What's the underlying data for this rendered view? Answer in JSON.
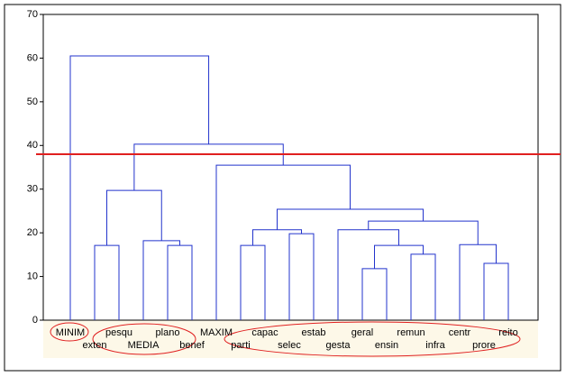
{
  "chart_data": {
    "type": "dendrogram",
    "leaves": [
      "MINIM",
      "exten",
      "pesqu",
      "MEDIA",
      "plano",
      "benef",
      "MAXIM",
      "parti",
      "capac",
      "selec",
      "estab",
      "gesta",
      "geral",
      "ensin",
      "remun",
      "infra",
      "centr",
      "prore",
      "reito"
    ],
    "merges": [
      [
        12,
        13,
        11.8
      ],
      [
        17,
        18,
        13.0
      ],
      [
        14,
        15,
        15.1
      ],
      [
        1,
        2,
        17.1
      ],
      [
        4,
        5,
        17.1
      ],
      [
        7,
        8,
        17.1
      ],
      [
        19,
        21,
        17.1
      ],
      [
        16,
        20,
        17.3
      ],
      [
        3,
        23,
        18.2
      ],
      [
        9,
        10,
        19.8
      ],
      [
        24,
        28,
        20.7
      ],
      [
        11,
        25,
        20.7
      ],
      [
        30,
        26,
        22.7
      ],
      [
        29,
        31,
        25.4
      ],
      [
        22,
        27,
        29.7
      ],
      [
        6,
        32,
        35.5
      ],
      [
        33,
        34,
        40.3
      ],
      [
        0,
        35,
        60.5
      ]
    ],
    "color": "#2233cc",
    "cutoff": 38,
    "cutoff_color": "#e02020",
    "ylim": [
      0,
      70
    ],
    "yticks": [
      0,
      10,
      20,
      30,
      40,
      50,
      60,
      70
    ]
  }
}
